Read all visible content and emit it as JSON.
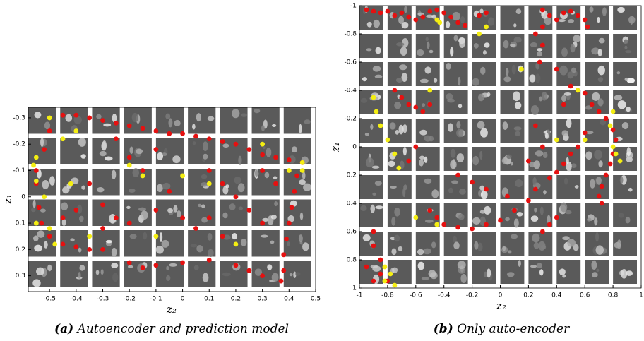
{
  "chart_data": [
    {
      "type": "scatter",
      "caption_tag": "(a)",
      "caption": "Autoencoder and prediction model",
      "x_label": "z₂",
      "y_label": "z₁",
      "xlim": [
        -0.58,
        0.5
      ],
      "ylim": [
        -0.34,
        0.36
      ],
      "y_inverted": true,
      "xticks": [
        -0.5,
        -0.4,
        -0.3,
        -0.2,
        -0.1,
        0,
        0.1,
        0.2,
        0.3,
        0.4,
        0.5
      ],
      "yticks": [
        -0.3,
        -0.2,
        -0.1,
        0,
        0.1,
        0.2,
        0.3
      ],
      "series": [
        {
          "color": "#e51010",
          "x": [
            -0.45,
            -0.4,
            -0.35,
            -0.3,
            -0.25,
            -0.2,
            -0.15,
            -0.1,
            -0.05,
            0,
            0.05,
            0.1,
            0.15,
            0.2,
            0.25,
            0.3,
            0.35,
            0.4,
            0.45,
            0.43,
            0.42,
            0.41,
            0.4,
            0.39,
            0.38,
            0.38,
            0.37,
            0.3,
            0.25,
            0.2,
            0.1,
            0,
            -0.1,
            -0.15,
            -0.2,
            -0.3,
            -0.35,
            -0.4,
            -0.45,
            -0.5,
            -0.53,
            -0.54,
            -0.55,
            -0.55,
            -0.52,
            -0.5,
            -0.35,
            -0.3,
            -0.25,
            -0.2,
            -0.1,
            -0.05,
            0,
            0.05,
            0.1,
            0.15,
            0.2,
            0.25,
            0.3,
            0.15,
            -0.15,
            -0.2,
            -0.1,
            0.3,
            0.35,
            -0.4,
            -0.45,
            -0.25,
            -0.3,
            0.1
          ],
          "y": [
            -0.31,
            -0.31,
            -0.3,
            -0.29,
            -0.28,
            -0.27,
            -0.26,
            -0.25,
            -0.24,
            -0.24,
            -0.23,
            -0.22,
            -0.21,
            -0.2,
            -0.18,
            -0.16,
            -0.15,
            -0.14,
            -0.13,
            -0.08,
            -0.02,
            0.04,
            0.1,
            0.16,
            0.22,
            0.28,
            0.32,
            0.3,
            0.28,
            0.26,
            0.24,
            0.25,
            0.26,
            0.27,
            0.25,
            0.2,
            0.2,
            0.19,
            0.18,
            0.15,
            0.1,
            0.04,
            -0.05,
            -0.1,
            -0.18,
            -0.25,
            -0.05,
            0.03,
            0.08,
            0.1,
            0.05,
            -0.02,
            0.08,
            0.12,
            -0.1,
            -0.05,
            0,
            0.05,
            0.1,
            0.15,
            -0.1,
            -0.15,
            -0.18,
            -0.1,
            -0.05,
            0.05,
            0.08,
            -0.22,
            0.12,
            0.08
          ]
        },
        {
          "color": "#f4ee12",
          "x": [
            -0.5,
            -0.55,
            -0.56,
            -0.55,
            -0.52,
            -0.55,
            -0.5,
            -0.48,
            -0.45,
            -0.42,
            -0.2,
            -0.15,
            0.4,
            0.45,
            0.45,
            0.2,
            -0.1,
            0,
            0.1,
            -0.35,
            0.3,
            -0.4
          ],
          "y": [
            -0.3,
            -0.15,
            -0.12,
            -0.06,
            0,
            0.1,
            0.12,
            0.18,
            -0.22,
            -0.05,
            -0.12,
            -0.08,
            -0.1,
            -0.13,
            -0.1,
            0.18,
            0.15,
            -0.08,
            -0.05,
            0.15,
            -0.2,
            -0.25
          ]
        }
      ]
    },
    {
      "type": "scatter",
      "caption_tag": "(b)",
      "caption": "Only auto-encoder",
      "x_label": "z₂",
      "y_label": "z₁",
      "xlim": [
        -1,
        1
      ],
      "ylim": [
        -1,
        1
      ],
      "y_inverted": true,
      "xticks": [
        -1,
        -0.8,
        -0.6,
        -0.4,
        -0.2,
        0,
        0.2,
        0.4,
        0.6,
        0.8,
        1
      ],
      "yticks": [
        -1,
        -0.8,
        -0.6,
        -0.4,
        -0.2,
        0,
        0.2,
        0.4,
        0.6,
        0.8,
        1
      ],
      "series": [
        {
          "color": "#e51010",
          "x": [
            -0.95,
            -0.9,
            -0.85,
            -0.8,
            -0.75,
            -0.7,
            -0.65,
            -0.6,
            -0.55,
            -0.5,
            -0.45,
            -0.4,
            -0.35,
            -0.3,
            -0.25,
            -0.15,
            -0.1,
            0.3,
            0.35,
            0.4,
            0.45,
            0.5,
            0.55,
            0.6,
            0.62,
            0.3,
            0.25,
            0.3,
            0.28,
            0.4,
            0.55,
            0.5,
            0.6,
            0.65,
            0.7,
            0.75,
            0.8,
            0.82,
            0.8,
            0.78,
            0.75,
            0.72,
            0.7,
            0.72,
            0.6,
            0.55,
            0.5,
            0.45,
            0.4,
            0.35,
            0.25,
            0.2,
            0.1,
            0,
            -0.1,
            -0.2,
            -0.3,
            -0.4,
            -0.45,
            -0.5,
            -0.3,
            -0.2,
            -0.1,
            0.05,
            0.3,
            0.35,
            0.4,
            -0.75,
            -0.7,
            -0.65,
            -0.6,
            -0.55,
            -0.5,
            -0.6,
            -0.65,
            -0.9,
            -0.9,
            -0.85,
            -0.85,
            -0.9,
            -0.8,
            -0.95,
            0.45,
            0.25,
            0.3,
            0.2
          ],
          "y": [
            -0.97,
            -0.96,
            -0.95,
            -0.96,
            -0.93,
            -0.95,
            -0.92,
            -0.9,
            -0.92,
            -0.96,
            -0.97,
            -0.95,
            -0.92,
            -0.88,
            -0.86,
            -0.93,
            -0.95,
            -0.97,
            -0.93,
            -0.9,
            -0.95,
            -0.96,
            -0.93,
            -0.9,
            -0.85,
            -0.85,
            -0.8,
            -0.72,
            -0.6,
            -0.55,
            -0.4,
            -0.43,
            -0.38,
            -0.3,
            -0.25,
            -0.2,
            -0.12,
            -0.05,
            0.05,
            0.12,
            0.2,
            0.28,
            0.35,
            0.4,
            -0.1,
            0,
            0.05,
            0.12,
            0.18,
            0.22,
            0.3,
            0.38,
            0.45,
            0.52,
            0.55,
            0.58,
            0.57,
            0.55,
            0.5,
            0.45,
            0.2,
            0.25,
            0.3,
            0.35,
            0.6,
            0.55,
            0.5,
            -0.4,
            -0.35,
            -0.3,
            -0.28,
            -0.25,
            -0.3,
            0,
            0.1,
            0.6,
            0.7,
            0.8,
            0.9,
            0.95,
            0.95,
            0.85,
            -0.3,
            -0.15,
            0,
            0.1
          ]
        },
        {
          "color": "#f4ee12",
          "x": [
            -0.9,
            -0.88,
            -0.85,
            -0.8,
            -0.75,
            -0.72,
            -0.5,
            -0.45,
            -0.43,
            -0.1,
            -0.15,
            0.15,
            0.8,
            0.78,
            0.8,
            0.82,
            0.85,
            0.6,
            0.4,
            0.55,
            -0.45,
            -0.82,
            -0.78,
            -0.75,
            -0.6,
            -0.82
          ],
          "y": [
            -0.35,
            -0.25,
            -0.15,
            -0.05,
            0.05,
            0.15,
            -0.4,
            -0.9,
            -0.88,
            -0.85,
            -0.8,
            -0.55,
            -0.25,
            -0.15,
            0,
            0.05,
            0.1,
            -0.05,
            -0.05,
            -0.4,
            0.55,
            0.85,
            0.9,
            0.98,
            0.5,
            0.95
          ]
        }
      ]
    }
  ]
}
